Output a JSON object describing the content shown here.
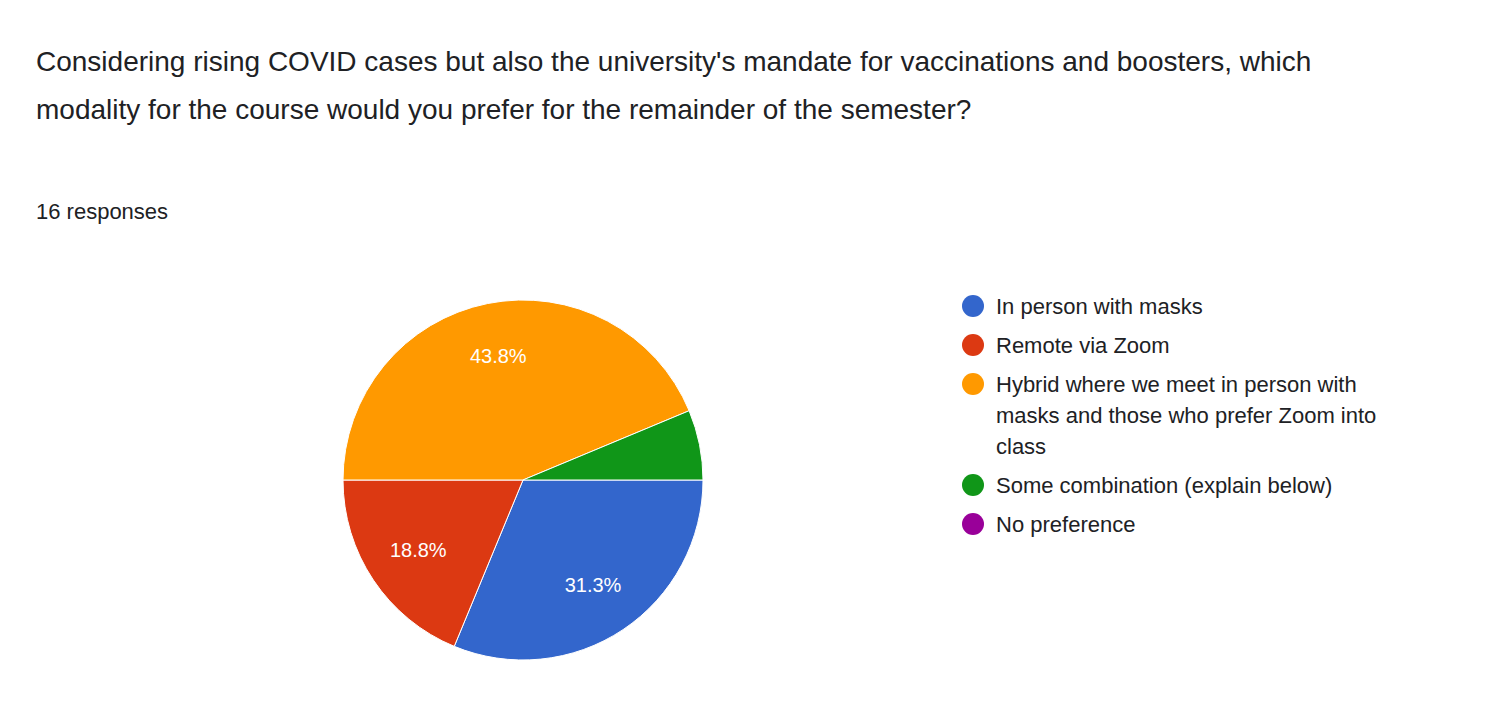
{
  "chart_data": {
    "type": "pie",
    "title": "Considering rising COVID cases but also the university's mandate for vaccinations and boosters, which modality for the course would you prefer for the remainder of the semester?",
    "subtitle": "16 responses",
    "categories": [
      "In person with masks",
      "Remote via Zoom",
      "Hybrid where we meet in person with masks and those who prefer Zoom into class",
      "Some combination (explain below)",
      "No preference"
    ],
    "values": [
      31.3,
      18.8,
      43.8,
      6.3,
      0
    ],
    "value_labels": [
      "31.3%",
      "18.8%",
      "43.8%",
      null,
      null
    ],
    "colors": [
      "#3366cc",
      "#dc3912",
      "#ff9900",
      "#109618",
      "#990099"
    ],
    "data_labels": true,
    "legend": "right"
  }
}
